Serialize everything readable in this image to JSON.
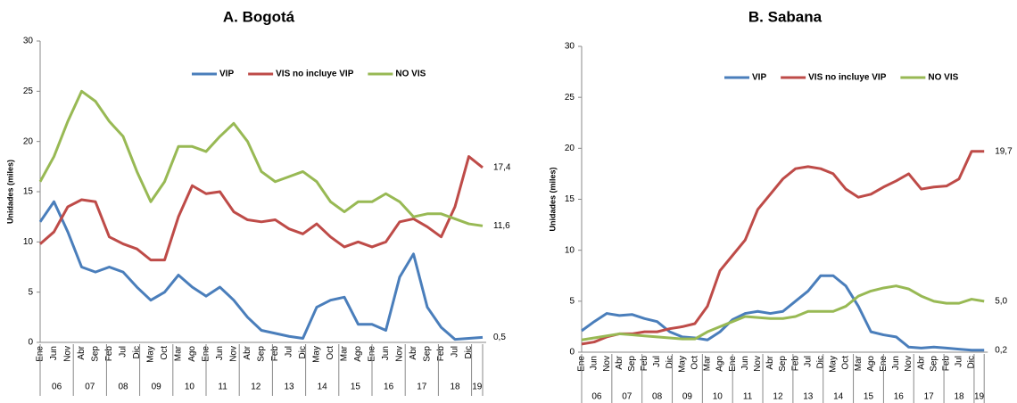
{
  "chart_data": [
    {
      "type": "line",
      "title": "A.    Bogotá",
      "y_label": "Unidades (miles)",
      "categories": [
        "Ene",
        "Jun",
        "Nov",
        "Abr",
        "Sep",
        "Feb",
        "Jul",
        "Dic",
        "May",
        "Oct",
        "Mar",
        "Ago",
        "Ene",
        "Jun",
        "Nov",
        "Abr",
        "Sep",
        "Feb",
        "Jul",
        "Dic",
        "May",
        "Oct",
        "Mar",
        "Ago",
        "Ene",
        "Jun",
        "Nov",
        "Abr",
        "Sep",
        "Feb",
        "Jul",
        "Dic",
        null
      ],
      "x_groups": [
        "06",
        "07",
        "08",
        "09",
        "10",
        "11",
        "12",
        "13",
        "14",
        "15",
        "16",
        "17",
        "18",
        "19"
      ],
      "ylim": [
        0,
        30
      ],
      "yticks": [
        0,
        5,
        10,
        15,
        20,
        25,
        30
      ],
      "series": [
        {
          "name": "VIP",
          "color": "#4a7ebb",
          "end_label": "0,5",
          "values": [
            12,
            14,
            11,
            7.5,
            7,
            7.5,
            7,
            5.5,
            4.2,
            5,
            6.7,
            5.5,
            4.6,
            5.5,
            4.2,
            2.5,
            1.2,
            0.9,
            0.6,
            0.4,
            3.5,
            4.2,
            4.5,
            1.8,
            1.8,
            1.2,
            6.5,
            8.8,
            3.5,
            1.5,
            0.3,
            0.4,
            0.5
          ]
        },
        {
          "name": "VIS no incluye VIP",
          "color": "#be4b48",
          "end_label": "17,4",
          "values": [
            9.8,
            11,
            13.5,
            14.2,
            14,
            10.5,
            9.8,
            9.3,
            8.2,
            8.2,
            12.5,
            15.6,
            14.8,
            15,
            13,
            12.2,
            12,
            12.2,
            11.3,
            10.8,
            11.8,
            10.5,
            9.5,
            10,
            9.5,
            10,
            12,
            12.3,
            11.5,
            10.5,
            13.5,
            18.5,
            17.4
          ]
        },
        {
          "name": "NO VIS",
          "color": "#98b954",
          "end_label": "11,6",
          "values": [
            16,
            18.5,
            22,
            25,
            24,
            22,
            20.5,
            17,
            14,
            16,
            19.5,
            19.5,
            19,
            20.5,
            21.8,
            20,
            17,
            16,
            16.5,
            17,
            16,
            14,
            13,
            14,
            14,
            14.8,
            14,
            12.5,
            12.8,
            12.8,
            12.3,
            11.8,
            11.6
          ]
        }
      ]
    },
    {
      "type": "line",
      "title": "B.    Sabana",
      "y_label": "Unidades (miles)",
      "categories": [
        "Ene",
        "Jun",
        "Nov",
        "Abr",
        "Sep",
        "Feb",
        "Jul",
        "Dic",
        "May",
        "Oct",
        "Mar",
        "Ago",
        "Ene",
        "Jun",
        "Nov",
        "Abr",
        "Sep",
        "Feb",
        "Jul",
        "Dic",
        "May",
        "Oct",
        "Mar",
        "Ago",
        "Ene",
        "Jun",
        "Nov",
        "Abr",
        "Sep",
        "Feb",
        "Jul",
        "Dic",
        null
      ],
      "x_groups": [
        "06",
        "07",
        "08",
        "09",
        "10",
        "11",
        "12",
        "13",
        "14",
        "15",
        "16",
        "17",
        "18",
        "19"
      ],
      "ylim": [
        0,
        30
      ],
      "yticks": [
        0,
        5,
        10,
        15,
        20,
        25,
        30
      ],
      "series": [
        {
          "name": "VIP",
          "color": "#4a7ebb",
          "end_label": "0,2",
          "values": [
            2.1,
            3,
            3.8,
            3.6,
            3.7,
            3.3,
            3,
            2,
            1.5,
            1.4,
            1.2,
            2,
            3.2,
            3.8,
            4,
            3.8,
            4,
            5,
            6,
            7.5,
            7.5,
            6.5,
            4.5,
            2,
            1.7,
            1.5,
            0.5,
            0.4,
            0.5,
            0.4,
            0.3,
            0.2,
            0.2
          ]
        },
        {
          "name": "VIS no incluye VIP",
          "color": "#be4b48",
          "end_label": "19,7",
          "values": [
            0.8,
            1,
            1.5,
            1.8,
            1.8,
            2,
            2,
            2.3,
            2.5,
            2.8,
            4.5,
            8,
            9.5,
            11,
            14,
            15.5,
            17,
            18,
            18.2,
            18,
            17.5,
            16,
            15.2,
            15.5,
            16.2,
            16.8,
            17.5,
            16,
            16.2,
            16.3,
            17,
            19.7,
            19.7
          ]
        },
        {
          "name": "NO VIS",
          "color": "#98b954",
          "end_label": "5,0",
          "values": [
            1.2,
            1.4,
            1.6,
            1.8,
            1.7,
            1.6,
            1.5,
            1.4,
            1.3,
            1.3,
            2,
            2.5,
            3,
            3.5,
            3.4,
            3.3,
            3.3,
            3.5,
            4,
            4,
            4,
            4.5,
            5.5,
            6,
            6.3,
            6.5,
            6.2,
            5.5,
            5,
            4.8,
            4.8,
            5.2,
            5.0
          ]
        }
      ]
    }
  ]
}
